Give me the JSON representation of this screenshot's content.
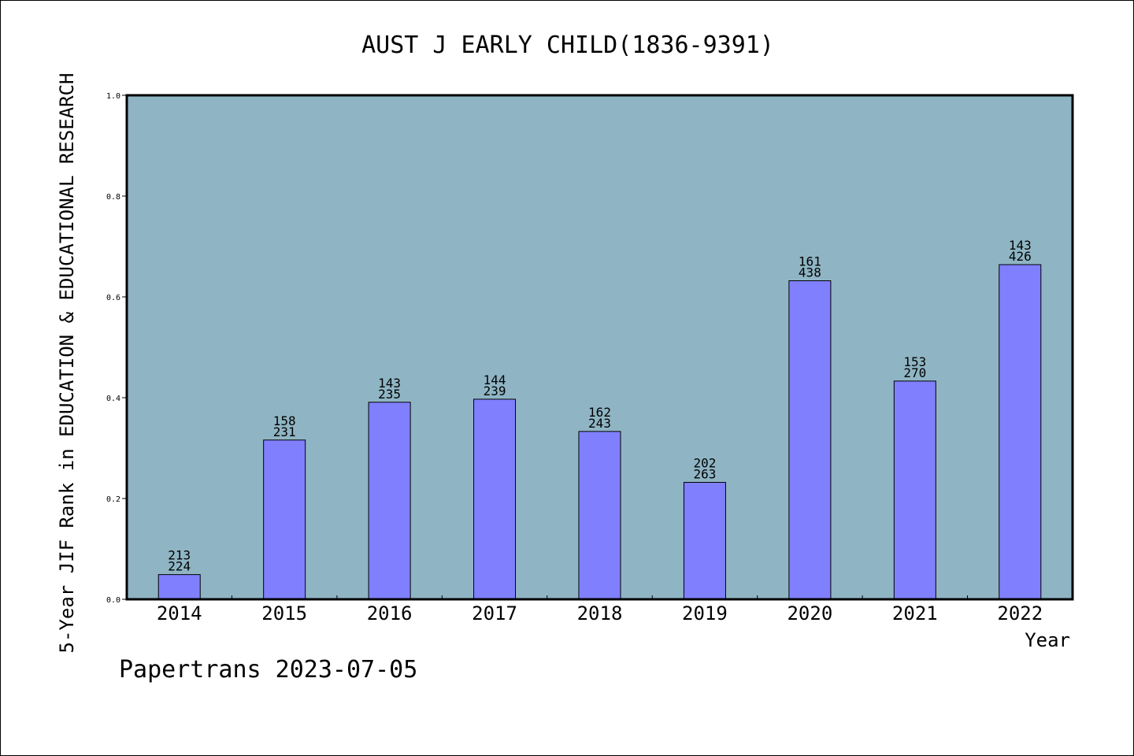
{
  "chart_data": {
    "type": "bar",
    "title": "AUST J EARLY CHILD(1836-9391)",
    "xlabel": "Year",
    "ylabel": "5-Year JIF Rank in EDUCATION & EDUCATIONAL RESEARCH",
    "ylim": [
      0,
      1.0
    ],
    "yticks": [
      "0.0",
      "0.2",
      "0.4",
      "0.6",
      "0.8",
      "1.0"
    ],
    "categories": [
      "2014",
      "2015",
      "2016",
      "2017",
      "2018",
      "2019",
      "2020",
      "2021",
      "2022"
    ],
    "values": [
      0.049,
      0.316,
      0.391,
      0.397,
      0.333,
      0.232,
      0.632,
      0.433,
      0.664
    ],
    "labels_top": [
      "213",
      "158",
      "143",
      "144",
      "162",
      "202",
      "161",
      "153",
      "143"
    ],
    "labels_bottom": [
      "224",
      "231",
      "235",
      "239",
      "243",
      "263",
      "438",
      "270",
      "426"
    ],
    "grid": false,
    "colors": {
      "plot_background": "#8fb5c4",
      "bar_fill": "#8080ff",
      "bar_stroke": "#000000"
    }
  },
  "footer": {
    "text": "Papertrans 2023-07-05"
  }
}
